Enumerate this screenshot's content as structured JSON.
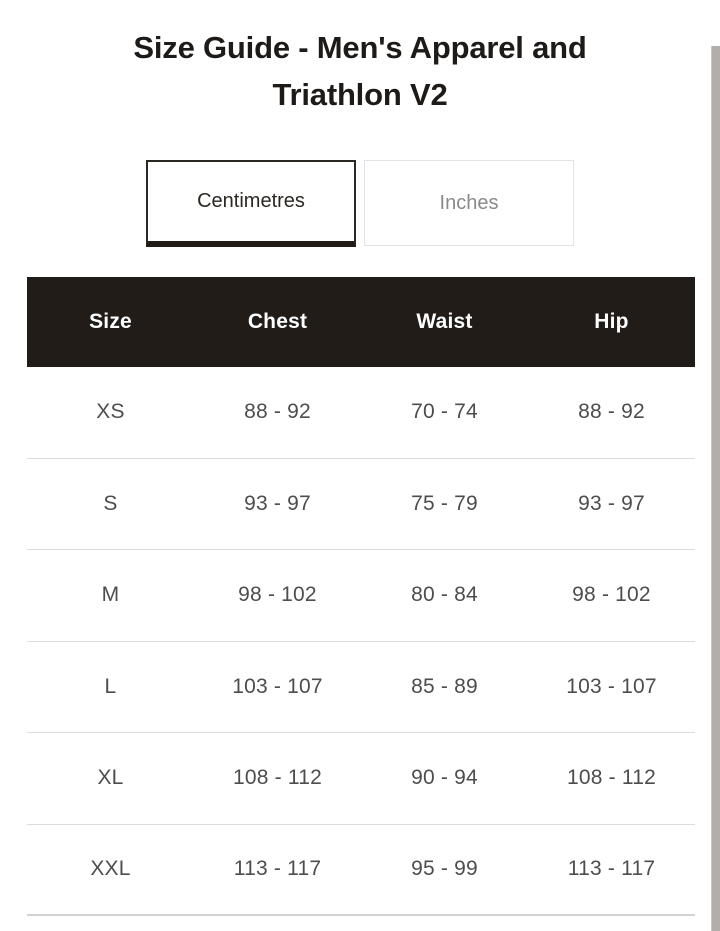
{
  "page": {
    "title": "Size Guide - Men's Apparel and Triathlon V2"
  },
  "tabs": {
    "centimetres": {
      "label": "Centimetres",
      "active": true
    },
    "inches": {
      "label": "Inches",
      "active": false
    }
  },
  "table": {
    "columns": {
      "size": "Size",
      "chest": "Chest",
      "waist": "Waist",
      "hip": "Hip"
    },
    "rows": [
      {
        "size": "XS",
        "chest": "88 - 92",
        "waist": "70 - 74",
        "hip": "88 - 92"
      },
      {
        "size": "S",
        "chest": "93 - 97",
        "waist": "75 - 79",
        "hip": "93 - 97"
      },
      {
        "size": "M",
        "chest": "98 - 102",
        "waist": "80 - 84",
        "hip": "98 - 102"
      },
      {
        "size": "L",
        "chest": "103 - 107",
        "waist": "85 - 89",
        "hip": "103 - 107"
      },
      {
        "size": "XL",
        "chest": "108 - 112",
        "waist": "90 - 94",
        "hip": "108 - 112"
      },
      {
        "size": "XXL",
        "chest": "113 - 117",
        "waist": "95 - 99",
        "hip": "113 - 117"
      }
    ]
  },
  "colors": {
    "header_bg": "#211c18",
    "header_text": "#ffffff",
    "body_text": "#4d4d4d",
    "title_text": "#1e1a17",
    "active_tab_border": "#2b2722",
    "inactive_tab_border": "#e3e3e3",
    "inactive_tab_text": "#8a8a8a",
    "row_divider": "#dcdcdc",
    "scrollbar_thumb": "#b1aeab"
  }
}
